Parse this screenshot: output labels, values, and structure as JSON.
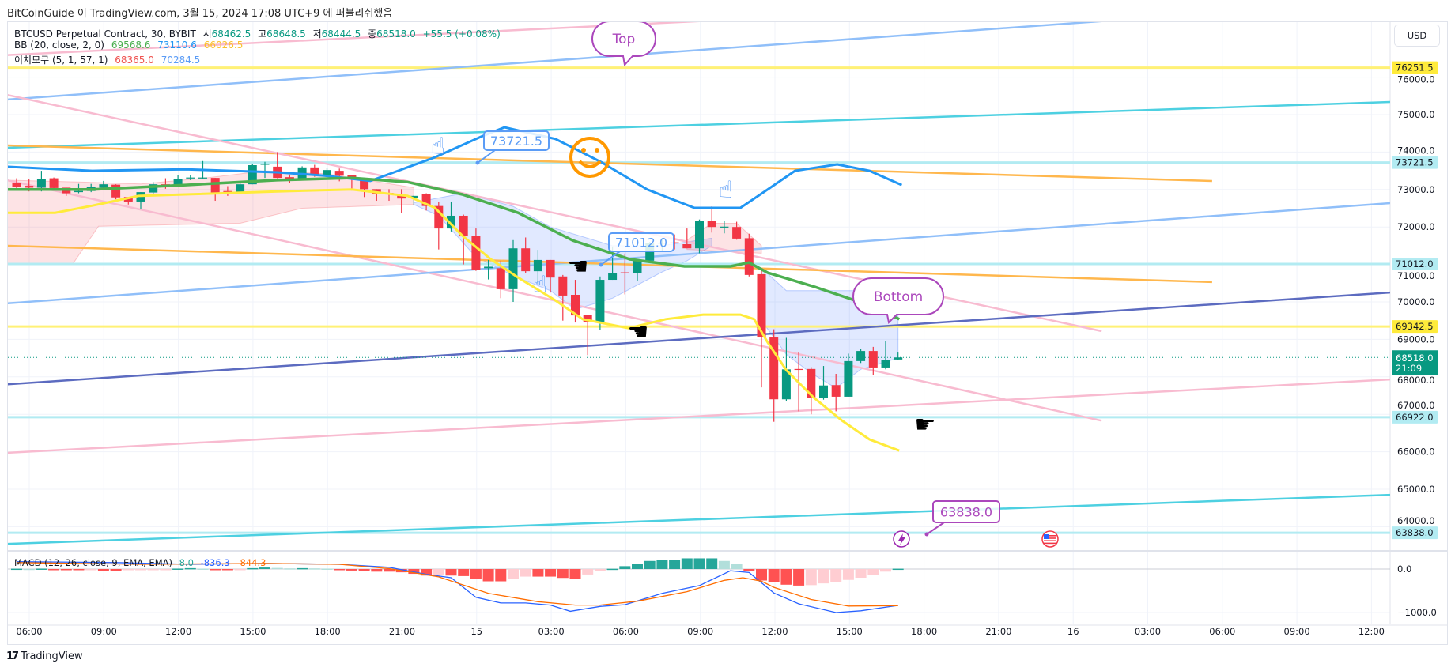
{
  "publish_line": "BitCoinGuide 이 TradingView.com, 3월 15, 2024 17:08 UTC+9 에 퍼블리쉬했음",
  "legend": {
    "symbol": "BTCUSD Perpetual Contract, 30, BYBIT",
    "open_label": "시",
    "open": "68462.5",
    "high_label": "고",
    "high": "68648.5",
    "low_label": "저",
    "low": "68444.5",
    "close_label": "종",
    "close": "68518.0",
    "change": "+55.5 (+0.08%)",
    "bb_label": "BB (20, close, 2, 0)",
    "bb_basis": "69568.6",
    "bb_upper": "73110.6",
    "bb_lower": "66026.5",
    "ichimoku_label": "이치모쿠 (5, 1, 57, 1)",
    "ichimoku_a": "68365.0",
    "ichimoku_b": "70284.5",
    "macd_label": "MACD (12, 26, close, 9, EMA, EMA)",
    "macd_hist": "8.0",
    "macd_line": "-836.3",
    "macd_signal": "-844.3"
  },
  "currency_button": "USD",
  "brand": "TradingView",
  "colors": {
    "up": "#089981",
    "down": "#f23645",
    "bb_basis": "#4caf50",
    "bb_upper": "#2196f3",
    "bb_lower": "#ffeb3b",
    "macd": "#2962ff",
    "signal": "#ff6d00",
    "hist_up": "#26a69a",
    "hist_up_fade": "#b2dfdb",
    "hist_dn": "#ff5252",
    "hist_dn_fade": "#ffcdd2",
    "annot": "#ab47bc",
    "note_blue": "#5b9cf6"
  },
  "chart_data": {
    "type": "candlestick",
    "interval": "30",
    "first_bar_time": "14 05:30",
    "price_ticks": [
      76000,
      75000,
      74000,
      73000,
      72000,
      71000,
      70000,
      69000,
      68000,
      67000,
      66000,
      65000,
      64000
    ],
    "price_tick_labels": [
      "76000.0",
      "75000.0",
      "74000.0",
      "73000.0",
      "72000.0",
      "71000.0",
      "70000.0",
      "69000.0",
      "68000.0",
      "67000.0",
      "66000.0",
      "65000.0",
      "64000.0"
    ],
    "time_labels": [
      "06:00",
      "09:00",
      "12:00",
      "15:00",
      "18:00",
      "21:00",
      "15",
      "03:00",
      "06:00",
      "09:00",
      "12:00",
      "15:00",
      "18:00",
      "21:00",
      "16",
      "03:00",
      "06:00",
      "09:00",
      "12:00"
    ],
    "macd_ticks": [
      0,
      -1000
    ],
    "macd_tick_labels": [
      "0.0",
      "−1000.0"
    ],
    "candles": [
      [
        73180,
        73300,
        72980,
        73060
      ],
      [
        73100,
        73270,
        72950,
        73050
      ],
      [
        73050,
        73500,
        72950,
        73290
      ],
      [
        73300,
        73320,
        72980,
        73040
      ],
      [
        73050,
        73050,
        72830,
        72900
      ],
      [
        72930,
        73150,
        72900,
        72960
      ],
      [
        72960,
        73150,
        72930,
        73060
      ],
      [
        73050,
        73230,
        73020,
        73140
      ],
      [
        73130,
        73140,
        72740,
        72790
      ],
      [
        72800,
        72800,
        72600,
        72680
      ],
      [
        72680,
        72930,
        72490,
        72930
      ],
      [
        72920,
        73200,
        72820,
        73140
      ],
      [
        73140,
        73300,
        73020,
        73080
      ],
      [
        73080,
        73380,
        73080,
        73290
      ],
      [
        73300,
        73380,
        73250,
        73320
      ],
      [
        73300,
        73760,
        73290,
        73320
      ],
      [
        73310,
        73310,
        72700,
        72920
      ],
      [
        72960,
        73090,
        72830,
        72940
      ],
      [
        72930,
        73200,
        72930,
        73140
      ],
      [
        73140,
        73680,
        73140,
        73650
      ],
      [
        73660,
        73740,
        73310,
        73690
      ],
      [
        73610,
        74000,
        73300,
        73310
      ],
      [
        73330,
        73400,
        73170,
        73250
      ],
      [
        73250,
        73620,
        73250,
        73590
      ],
      [
        73590,
        73660,
        73340,
        73370
      ],
      [
        73370,
        73580,
        73370,
        73520
      ],
      [
        73500,
        73560,
        73220,
        73370
      ],
      [
        73380,
        73380,
        72970,
        73290
      ],
      [
        73290,
        73290,
        72800,
        73010
      ],
      [
        73010,
        73010,
        72700,
        72880
      ],
      [
        72910,
        73010,
        72700,
        72890
      ],
      [
        72890,
        73010,
        72370,
        72760
      ],
      [
        72770,
        72840,
        72580,
        72830
      ],
      [
        72870,
        72900,
        72440,
        72560
      ],
      [
        72560,
        72660,
        71400,
        71960
      ],
      [
        71960,
        72680,
        71880,
        72300
      ],
      [
        72300,
        72330,
        71000,
        71750
      ],
      [
        71770,
        71960,
        70830,
        70860
      ],
      [
        70900,
        71120,
        70600,
        70940
      ],
      [
        70900,
        71100,
        70100,
        70340
      ],
      [
        70340,
        71650,
        70000,
        71430
      ],
      [
        71430,
        71720,
        70780,
        70820
      ],
      [
        70820,
        71390,
        70500,
        71120
      ],
      [
        71120,
        71120,
        70250,
        70650
      ],
      [
        70680,
        70720,
        69500,
        70170
      ],
      [
        70190,
        70590,
        69450,
        69640
      ],
      [
        69660,
        69660,
        68580,
        69470
      ],
      [
        69470,
        70680,
        69250,
        70590
      ],
      [
        70590,
        71480,
        70590,
        70780
      ],
      [
        70790,
        71290,
        70200,
        70770
      ],
      [
        70760,
        71100,
        70570,
        71100
      ],
      [
        71100,
        71600,
        71100,
        71580
      ],
      [
        71560,
        71700,
        71360,
        71580
      ],
      [
        71590,
        71800,
        71400,
        71570
      ],
      [
        71540,
        71960,
        71430,
        71430
      ],
      [
        71430,
        72200,
        71300,
        72170
      ],
      [
        72170,
        72550,
        71850,
        72000
      ],
      [
        71990,
        72170,
        71830,
        72010
      ],
      [
        72000,
        72140,
        71660,
        71690
      ],
      [
        71700,
        71820,
        70680,
        70720
      ],
      [
        70740,
        70850,
        67720,
        69050
      ],
      [
        69050,
        69270,
        66800,
        67400
      ],
      [
        67400,
        69040,
        67360,
        68200
      ],
      [
        68210,
        68650,
        67080,
        68190
      ],
      [
        68210,
        68260,
        67000,
        67430
      ],
      [
        67430,
        68290,
        67390,
        67770
      ],
      [
        67780,
        68080,
        67080,
        67470
      ],
      [
        67470,
        68620,
        67470,
        68420
      ],
      [
        68420,
        68740,
        68370,
        68690
      ],
      [
        68690,
        68800,
        68050,
        68250
      ],
      [
        68250,
        68960,
        68200,
        68450
      ],
      [
        68462.5,
        68648.5,
        68444.5,
        68518.0
      ]
    ],
    "bb_upper": [
      [
        -0.8,
        73610
      ],
      [
        6.1,
        73500
      ],
      [
        13.6,
        73540
      ],
      [
        21,
        73460
      ],
      [
        24.8,
        73370
      ],
      [
        28.5,
        73230
      ],
      [
        33.7,
        73860
      ],
      [
        37.4,
        74410
      ],
      [
        39.3,
        74660
      ],
      [
        43.4,
        74350
      ],
      [
        47.1,
        73730
      ],
      [
        50.8,
        73000
      ],
      [
        54.6,
        72510
      ],
      [
        58.3,
        72510
      ],
      [
        60.5,
        73000
      ],
      [
        62.7,
        73500
      ],
      [
        66.1,
        73670
      ],
      [
        68.7,
        73500
      ],
      [
        71.3,
        73120
      ]
    ],
    "bb_basis": [
      [
        -0.8,
        73000
      ],
      [
        6.1,
        73000
      ],
      [
        13.6,
        73120
      ],
      [
        21,
        73250
      ],
      [
        27,
        73310
      ],
      [
        31.5,
        73200
      ],
      [
        35.9,
        72870
      ],
      [
        40.4,
        72380
      ],
      [
        44.8,
        71640
      ],
      [
        49.4,
        71140
      ],
      [
        53.8,
        70950
      ],
      [
        57.5,
        70950
      ],
      [
        59,
        71050
      ],
      [
        60.5,
        70780
      ],
      [
        64.3,
        70400
      ],
      [
        68.7,
        69910
      ],
      [
        71.1,
        69540
      ]
    ],
    "bb_lower": [
      [
        -0.8,
        72380
      ],
      [
        3.1,
        72380
      ],
      [
        6.1,
        72570
      ],
      [
        9.8,
        72830
      ],
      [
        13.6,
        72870
      ],
      [
        21,
        72950
      ],
      [
        27,
        73000
      ],
      [
        31.5,
        72830
      ],
      [
        33.7,
        72510
      ],
      [
        35.9,
        71770
      ],
      [
        38.2,
        71140
      ],
      [
        40.4,
        70650
      ],
      [
        43.4,
        70040
      ],
      [
        45.6,
        69540
      ],
      [
        49.3,
        69300
      ],
      [
        52.3,
        69540
      ],
      [
        55.3,
        69660
      ],
      [
        58.3,
        69660
      ],
      [
        59.4,
        69540
      ],
      [
        60.5,
        68920
      ],
      [
        62,
        68180
      ],
      [
        64.2,
        67450
      ],
      [
        66.5,
        66830
      ],
      [
        68.7,
        66330
      ],
      [
        71.1,
        66030
      ]
    ],
    "ichimoku_clouds": [
      {
        "color": "pink",
        "top": [
          [
            -1,
            73250
          ],
          [
            5,
            73200
          ],
          [
            10,
            73150
          ],
          [
            15,
            73300
          ],
          [
            20,
            73500
          ],
          [
            25,
            73420
          ],
          [
            32,
            73050
          ]
        ],
        "bottom": [
          [
            32,
            72600
          ],
          [
            23,
            72500
          ],
          [
            18,
            72100
          ],
          [
            6.6,
            72020
          ],
          [
            4.5,
            71000
          ],
          [
            -1,
            71000
          ]
        ]
      },
      {
        "color": "blue",
        "top": [
          [
            32,
            72650
          ],
          [
            36,
            72900
          ],
          [
            40,
            72550
          ],
          [
            43,
            72000
          ],
          [
            45,
            71800
          ],
          [
            48,
            71500
          ],
          [
            52,
            71500
          ],
          [
            56,
            71700
          ]
        ],
        "bottom": [
          [
            56,
            71500
          ],
          [
            54,
            71100
          ],
          [
            52,
            70800
          ],
          [
            50,
            70450
          ],
          [
            48,
            70100
          ],
          [
            45,
            69800
          ],
          [
            43,
            70300
          ],
          [
            40,
            70700
          ],
          [
            37,
            71200
          ],
          [
            34,
            72300
          ],
          [
            32,
            72600
          ]
        ]
      },
      {
        "color": "pink",
        "top": [
          [
            54,
            71650
          ],
          [
            56,
            72100
          ],
          [
            58,
            72100
          ],
          [
            60,
            71500
          ]
        ],
        "bottom": [
          [
            60,
            71300
          ],
          [
            54,
            71400
          ]
        ]
      },
      {
        "color": "blue",
        "top": [
          [
            60,
            70900
          ],
          [
            62,
            70300
          ],
          [
            71,
            70300
          ]
        ],
        "bottom": [
          [
            71,
            68500
          ],
          [
            68,
            68200
          ],
          [
            66,
            67700
          ],
          [
            64,
            68100
          ],
          [
            62,
            68600
          ],
          [
            60,
            69500
          ]
        ]
      }
    ],
    "trendlines": [
      {
        "color": "#f8bbd0",
        "pts": [
          [
            -1.3,
            76580
          ],
          [
            56,
            77510
          ]
        ]
      },
      {
        "color": "#90bff9",
        "pts": [
          [
            -0.8,
            75400
          ],
          [
            88.1,
            77510
          ]
        ]
      },
      {
        "color": "#4dd0e1",
        "pts": [
          [
            -0.8,
            74114
          ],
          [
            110.7,
            75338
          ]
        ]
      },
      {
        "color": "#ffb74d",
        "pts": [
          [
            -0.8,
            74177
          ],
          [
            96.3,
            73228
          ]
        ]
      },
      {
        "color": "#f8bbd0",
        "pts": [
          [
            -0.8,
            75530
          ],
          [
            87.4,
            69220
          ]
        ]
      },
      {
        "color": "#f8bbd0",
        "pts": [
          [
            -0.8,
            73250
          ],
          [
            87.4,
            66830
          ]
        ]
      },
      {
        "color": "#90bff9",
        "pts": [
          [
            -0.8,
            69960
          ],
          [
            110.7,
            72640
          ]
        ]
      },
      {
        "color": "#ffb74d",
        "pts": [
          [
            -0.8,
            71500
          ],
          [
            96.3,
            70530
          ]
        ]
      },
      {
        "color": "#5c6bc0",
        "pts": [
          [
            -0.8,
            67800
          ],
          [
            110.7,
            70250
          ]
        ]
      },
      {
        "color": "#f8bbd0",
        "pts": [
          [
            -0.8,
            65970
          ],
          [
            110.7,
            67930
          ]
        ]
      },
      {
        "color": "#4dd0e1",
        "pts": [
          [
            -0.8,
            63540
          ],
          [
            110.7,
            64850
          ]
        ]
      }
    ],
    "horizontal_levels": [
      {
        "price": 76251.5,
        "label": "76251.5",
        "color": "#fff176",
        "label_bg": "#ffeb3b"
      },
      {
        "price": 73721.5,
        "label": "73721.5",
        "color": "#b2ebf2",
        "label_bg": "#b2ebf2"
      },
      {
        "price": 71012.0,
        "label": "71012.0",
        "color": "#b2ebf2",
        "label_bg": "#b2ebf2"
      },
      {
        "price": 69342.5,
        "label": "69342.5",
        "color": "#fff176",
        "label_bg": "#ffeb3b"
      },
      {
        "price": 66922.0,
        "label": "66922.0",
        "color": "#b2ebf2",
        "label_bg": "#b2ebf2"
      },
      {
        "price": 63838.0,
        "label": "63838.0",
        "color": "#b2ebf2",
        "label_bg": "#b2ebf2"
      }
    ],
    "last_price": {
      "price": 68518.0,
      "label": "68518.0",
      "countdown": "21:09"
    },
    "annotations": [
      {
        "text": "Top",
        "kind": "bubble",
        "color": "#ab47bc"
      },
      {
        "text": "Bottom",
        "kind": "bubble",
        "color": "#ab47bc"
      },
      {
        "text": "73721.5",
        "kind": "price-note",
        "color": "#5b9cf6"
      },
      {
        "text": "71012.0",
        "kind": "price-note",
        "color": "#5b9cf6"
      },
      {
        "text": "63838.0",
        "kind": "price-note",
        "color": "#ab47bc"
      }
    ],
    "macd_hist": [
      8,
      5,
      10,
      -20,
      -25,
      -25,
      -20,
      -40,
      -45,
      -25,
      -20,
      -15,
      -10,
      10,
      20,
      10,
      -15,
      -15,
      -10,
      20,
      35,
      25,
      15,
      20,
      15,
      10,
      -15,
      -35,
      -45,
      -60,
      -60,
      -75,
      -110,
      -150,
      -144,
      -150,
      -162,
      -234,
      -282,
      -282,
      -234,
      -174,
      -174,
      -174,
      -204,
      -222,
      -126,
      -54,
      6,
      66,
      126,
      186,
      204,
      204,
      246,
      246,
      246,
      186,
      114,
      -54,
      -264,
      -300,
      -360,
      -380,
      -370,
      -330,
      -300,
      -250,
      -200,
      -130,
      -60,
      8
    ],
    "macd_line": [
      [
        0,
        170
      ],
      [
        8,
        150
      ],
      [
        14,
        110
      ],
      [
        20,
        130
      ],
      [
        26,
        110
      ],
      [
        30,
        40
      ],
      [
        33,
        -120
      ],
      [
        35,
        -200
      ],
      [
        37,
        -650
      ],
      [
        39,
        -780
      ],
      [
        41,
        -780
      ],
      [
        43,
        -830
      ],
      [
        44.6,
        -970
      ],
      [
        47,
        -860
      ],
      [
        49,
        -820
      ],
      [
        52,
        -560
      ],
      [
        55,
        -380
      ],
      [
        57.5,
        -40
      ],
      [
        59,
        -80
      ],
      [
        61,
        -550
      ],
      [
        63,
        -800
      ],
      [
        66,
        -1000
      ],
      [
        68,
        -960
      ],
      [
        71,
        -836
      ]
    ],
    "signal_line": [
      [
        0,
        150
      ],
      [
        10,
        110
      ],
      [
        20,
        130
      ],
      [
        26,
        110
      ],
      [
        30,
        10
      ],
      [
        34,
        -180
      ],
      [
        38,
        -560
      ],
      [
        42,
        -750
      ],
      [
        45,
        -830
      ],
      [
        47,
        -830
      ],
      [
        50,
        -740
      ],
      [
        54,
        -520
      ],
      [
        57,
        -260
      ],
      [
        58.5,
        -200
      ],
      [
        60,
        -280
      ],
      [
        61,
        -420
      ],
      [
        64,
        -700
      ],
      [
        67,
        -850
      ],
      [
        71,
        -844
      ]
    ]
  }
}
